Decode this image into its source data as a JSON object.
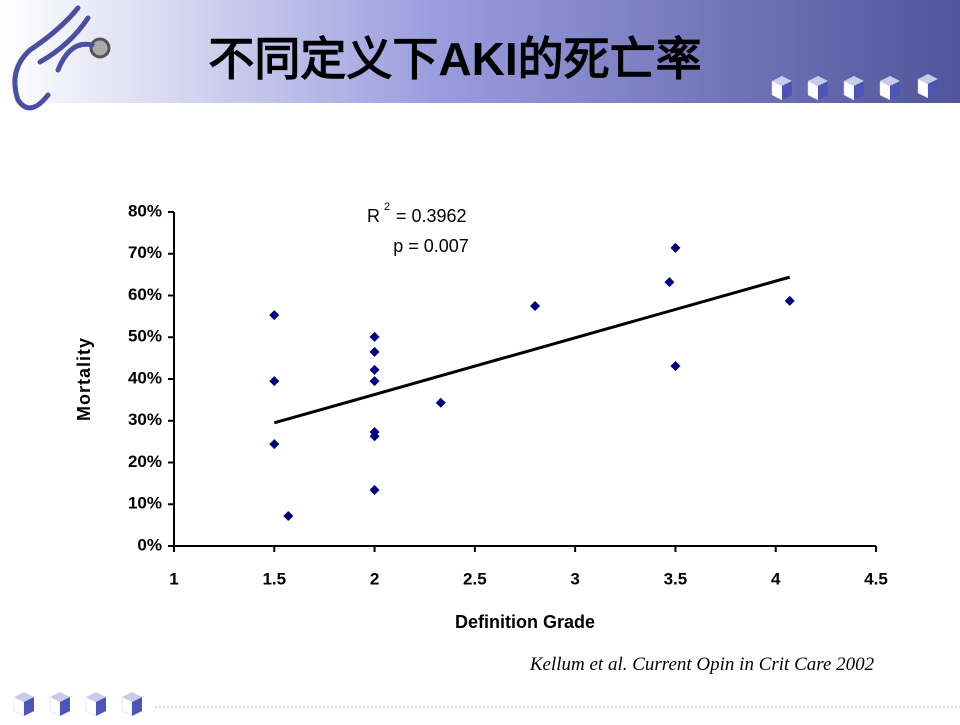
{
  "title": "不同定义下AKI的死亡率",
  "citation": "Kellum et al. Current Opin in Crit Care 2002",
  "chart_data": {
    "type": "scatter",
    "x_label": "Definition Grade",
    "y_label": "Mortality",
    "x": [
      1.5,
      1.5,
      1.5,
      1.57,
      2,
      2,
      2,
      2,
      2,
      2,
      2,
      2.33,
      2.8,
      3.47,
      3.5,
      3.5,
      4.07
    ],
    "values": [
      55.3,
      39.5,
      24.4,
      7.2,
      50.1,
      46.5,
      42.2,
      39.5,
      27.3,
      26.3,
      13.4,
      34.3,
      57.5,
      63.2,
      71.4,
      43.1,
      58.7
    ],
    "color": "#000080",
    "trendline": {
      "x": [
        1.5,
        4.07
      ],
      "y": [
        29.5,
        64.4
      ],
      "color": "#000000"
    },
    "r2_label": {
      "base": "R",
      "sup": "2",
      "text": "= 0.3962"
    },
    "p_label": "p = 0.007",
    "xlim": [
      1,
      4.5
    ],
    "xticks": [
      1,
      1.5,
      2,
      2.5,
      3,
      3.5,
      4,
      4.5
    ],
    "ylim": [
      0,
      80
    ],
    "yticks": [
      {
        "value": 0,
        "label": "0%"
      },
      {
        "value": 10,
        "label": "10%"
      },
      {
        "value": 20,
        "label": "20%"
      },
      {
        "value": 30,
        "label": "30%"
      },
      {
        "value": 40,
        "label": "40%"
      },
      {
        "value": 50,
        "label": "50%"
      },
      {
        "value": 60,
        "label": "60%"
      },
      {
        "value": 70,
        "label": "70%"
      },
      {
        "value": 80,
        "label": "80%"
      }
    ],
    "grid": false
  }
}
